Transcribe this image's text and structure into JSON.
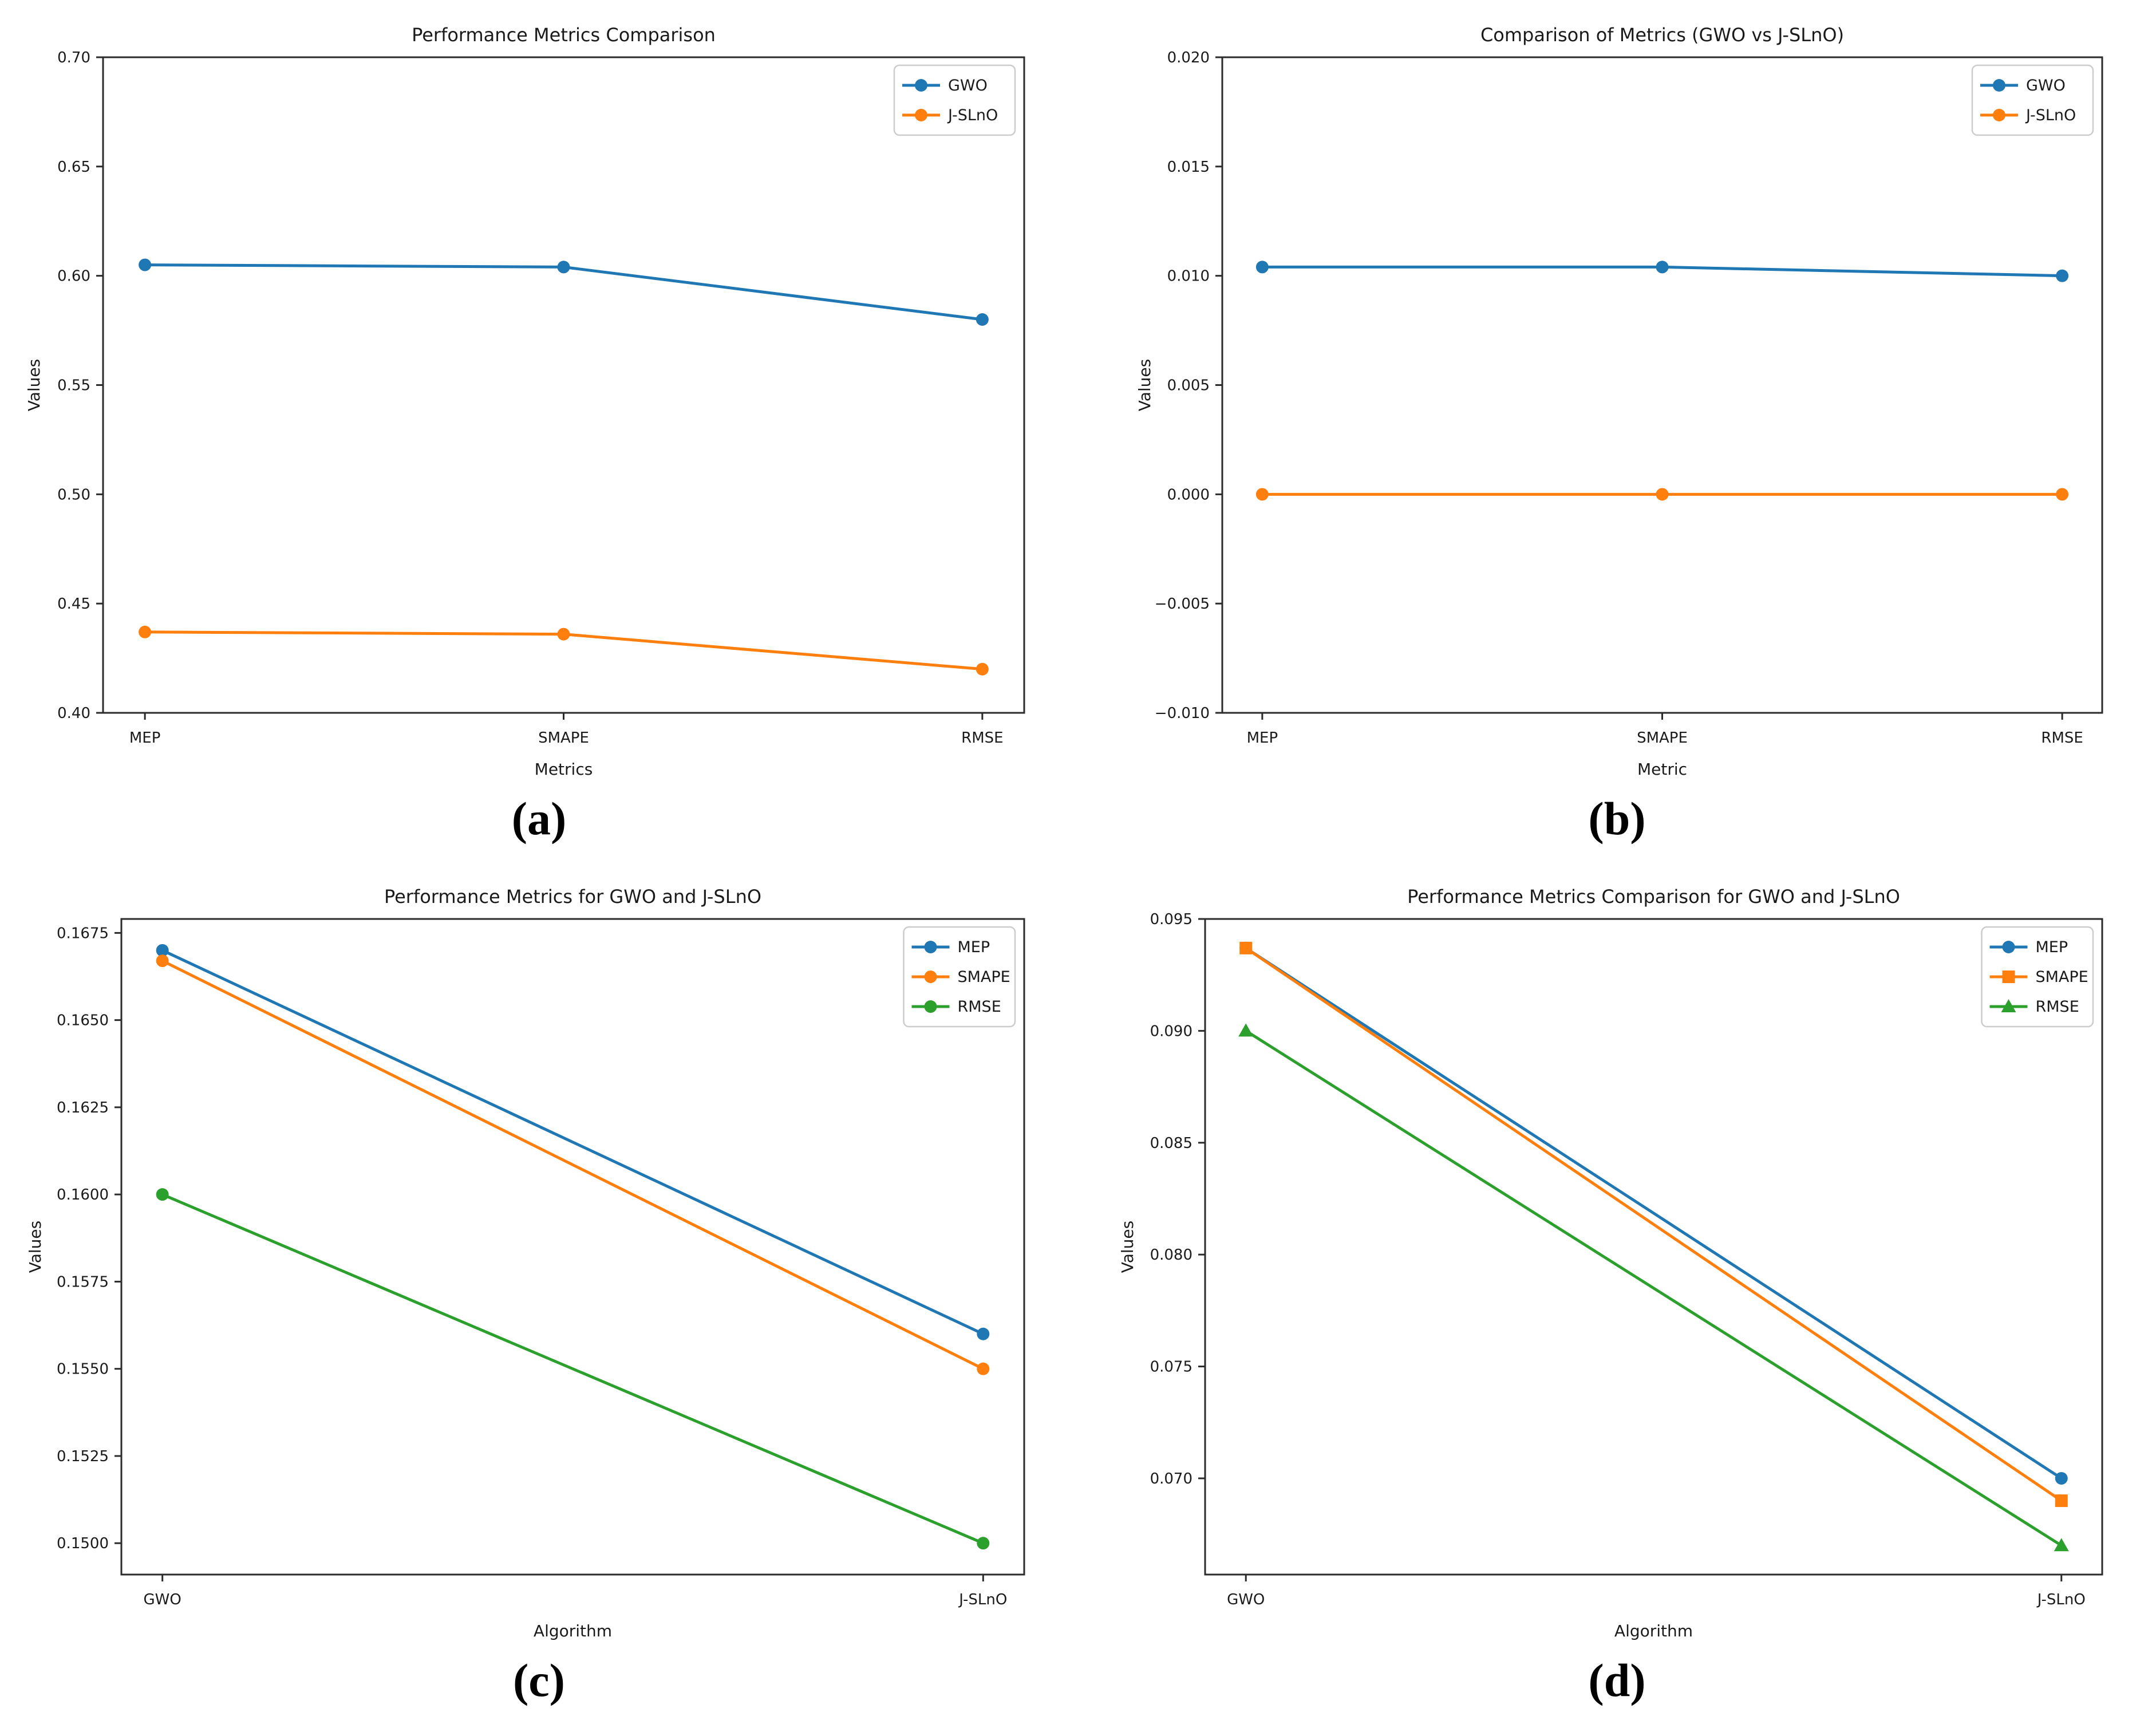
{
  "page": {
    "background": "#ffffff",
    "text_color": "#1a1a1a",
    "spine_color": "#2b2b2b",
    "legend_border_color": "#cccccc"
  },
  "chart_data": [
    {
      "id": "a",
      "type": "line",
      "title": "Performance Metrics Comparison",
      "xlabel": "Metrics",
      "ylabel": "Values",
      "categories": [
        "MEP",
        "SMAPE",
        "RMSE"
      ],
      "series": [
        {
          "name": "GWO",
          "color": "#1f77b4",
          "marker": "circle",
          "values": [
            0.605,
            0.604,
            0.58
          ]
        },
        {
          "name": "J-SLnO",
          "color": "#ff7f0e",
          "marker": "circle",
          "values": [
            0.437,
            0.436,
            0.42
          ]
        }
      ],
      "ylim": [
        0.4,
        0.7
      ],
      "yticks": [
        0.4,
        0.45,
        0.5,
        0.55,
        0.6,
        0.65,
        0.7
      ],
      "ytick_decimals": 2,
      "grid": false,
      "legend_position": "top-right",
      "caption": "(a)"
    },
    {
      "id": "b",
      "type": "line",
      "title": "Comparison of Metrics (GWO vs J-SLnO)",
      "xlabel": "Metric",
      "ylabel": "Values",
      "categories": [
        "MEP",
        "SMAPE",
        "RMSE"
      ],
      "series": [
        {
          "name": "GWO",
          "color": "#1f77b4",
          "marker": "circle",
          "values": [
            0.0104,
            0.0104,
            0.01
          ]
        },
        {
          "name": "J-SLnO",
          "color": "#ff7f0e",
          "marker": "circle",
          "values": [
            0.0,
            0.0,
            0.0
          ]
        }
      ],
      "ylim": [
        -0.01,
        0.02
      ],
      "yticks": [
        -0.01,
        -0.005,
        0.0,
        0.005,
        0.01,
        0.015,
        0.02
      ],
      "ytick_decimals": 3,
      "grid": false,
      "legend_position": "top-right",
      "caption": "(b)"
    },
    {
      "id": "c",
      "type": "line",
      "title": "Performance Metrics for GWO and J-SLnO",
      "xlabel": "Algorithm",
      "ylabel": "Values",
      "categories": [
        "GWO",
        "J-SLnO"
      ],
      "series": [
        {
          "name": "MEP",
          "color": "#1f77b4",
          "marker": "circle",
          "values": [
            0.167,
            0.156
          ]
        },
        {
          "name": "SMAPE",
          "color": "#ff7f0e",
          "marker": "circle",
          "values": [
            0.1667,
            0.155
          ]
        },
        {
          "name": "RMSE",
          "color": "#2ca02c",
          "marker": "circle",
          "values": [
            0.16,
            0.15
          ]
        }
      ],
      "ylim": [
        0.1491,
        0.1679
      ],
      "yticks": [
        0.15,
        0.1525,
        0.155,
        0.1575,
        0.16,
        0.1625,
        0.165,
        0.1675
      ],
      "ytick_decimals": 4,
      "grid": false,
      "legend_position": "top-right",
      "caption": "(c)"
    },
    {
      "id": "d",
      "type": "line",
      "title": "Performance Metrics Comparison for GWO and J-SLnO",
      "xlabel": "Algorithm",
      "ylabel": "Values",
      "categories": [
        "GWO",
        "J-SLnO"
      ],
      "series": [
        {
          "name": "MEP",
          "color": "#1f77b4",
          "marker": "circle",
          "values": [
            0.0937,
            0.07
          ]
        },
        {
          "name": "SMAPE",
          "color": "#ff7f0e",
          "marker": "square",
          "values": [
            0.0937,
            0.069
          ]
        },
        {
          "name": "RMSE",
          "color": "#2ca02c",
          "marker": "triangle",
          "values": [
            0.09,
            0.067
          ]
        }
      ],
      "ylim": [
        0.0657,
        0.095
      ],
      "yticks": [
        0.07,
        0.075,
        0.08,
        0.085,
        0.09,
        0.095
      ],
      "ytick_decimals": 3,
      "grid": false,
      "legend_position": "top-right",
      "caption": "(d)"
    }
  ]
}
